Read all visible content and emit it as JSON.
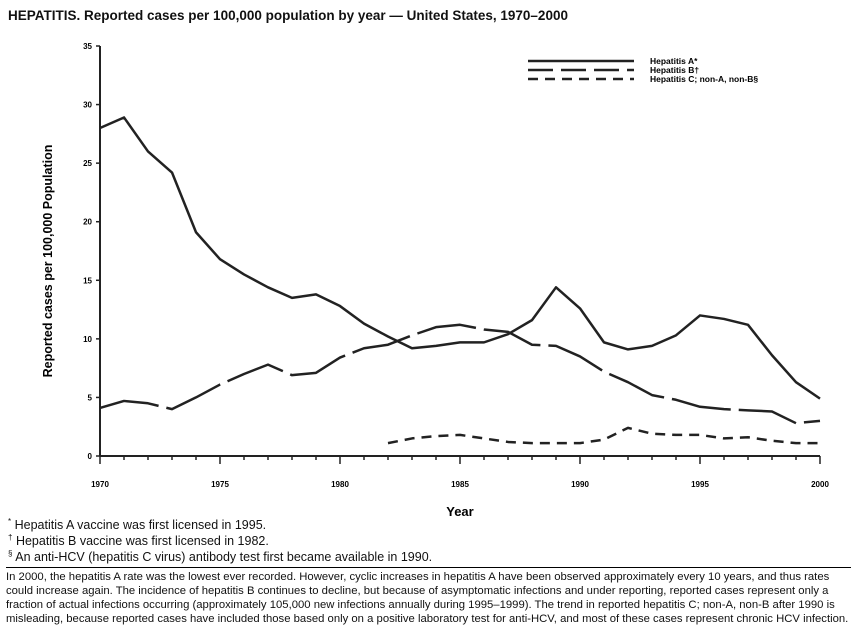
{
  "title": "HEPATITIS. Reported cases per 100,000 population by year — United States, 1970–2000",
  "chart_data": {
    "type": "line",
    "xlabel": "Year",
    "ylabel": "Reported cases per 100,000 Population",
    "xlim": [
      1970,
      2000
    ],
    "ylim": [
      0,
      35
    ],
    "x_ticks": [
      "1970",
      "1975",
      "1980",
      "1985",
      "1990",
      "1995",
      "2000"
    ],
    "y_ticks": [
      "0",
      "5",
      "10",
      "15",
      "20",
      "25",
      "30",
      "35"
    ],
    "grid": false,
    "legend_position": "top-right",
    "series": [
      {
        "name": "Hepatitis A*",
        "style": "solid",
        "x": [
          1970,
          1971,
          1972,
          1973,
          1974,
          1975,
          1976,
          1977,
          1978,
          1979,
          1980,
          1981,
          1982,
          1983,
          1984,
          1985,
          1986,
          1987,
          1988,
          1989,
          1990,
          1991,
          1992,
          1993,
          1994,
          1995,
          1996,
          1997,
          1998,
          1999,
          2000
        ],
        "values": [
          28.0,
          28.9,
          26.0,
          24.2,
          19.1,
          16.8,
          15.5,
          14.4,
          13.5,
          13.8,
          12.8,
          11.3,
          10.2,
          9.2,
          9.4,
          9.7,
          9.7,
          10.4,
          11.6,
          14.4,
          12.6,
          9.7,
          9.1,
          9.4,
          10.3,
          12.0,
          11.7,
          11.2,
          8.6,
          6.3,
          4.9
        ]
      },
      {
        "name": "Hepatitis B†",
        "style": "long-dash",
        "x": [
          1970,
          1971,
          1972,
          1973,
          1974,
          1975,
          1976,
          1977,
          1978,
          1979,
          1980,
          1981,
          1982,
          1983,
          1984,
          1985,
          1986,
          1987,
          1988,
          1989,
          1990,
          1991,
          1992,
          1993,
          1994,
          1995,
          1996,
          1997,
          1998,
          1999,
          2000
        ],
        "values": [
          4.1,
          4.7,
          4.5,
          4.0,
          5.0,
          6.1,
          7.0,
          7.8,
          6.9,
          7.1,
          8.4,
          9.2,
          9.5,
          10.3,
          11.0,
          11.2,
          10.8,
          10.6,
          9.5,
          9.4,
          8.5,
          7.2,
          6.3,
          5.2,
          4.8,
          4.2,
          4.0,
          3.9,
          3.8,
          2.8,
          3.0
        ]
      },
      {
        "name": "Hepatitis C; non-A, non-B§",
        "style": "short-dash",
        "x": [
          1982,
          1983,
          1984,
          1985,
          1986,
          1987,
          1988,
          1989,
          1990,
          1991,
          1992,
          1993,
          1994,
          1995,
          1996,
          1997,
          1998,
          1999,
          2000
        ],
        "values": [
          1.1,
          1.5,
          1.7,
          1.8,
          1.5,
          1.2,
          1.1,
          1.1,
          1.1,
          1.4,
          2.4,
          1.9,
          1.8,
          1.8,
          1.5,
          1.6,
          1.3,
          1.1,
          1.1
        ]
      }
    ]
  },
  "footnotes": [
    {
      "mark": "*",
      "text": "Hepatitis A vaccine was first licensed in 1995."
    },
    {
      "mark": "†",
      "text": "Hepatitis B vaccine was first licensed in 1982."
    },
    {
      "mark": "§",
      "text": "An anti-HCV (hepatitis C virus) antibody test first became available in 1990."
    }
  ],
  "note": "In 2000, the hepatitis A rate was the lowest ever recorded. However, cyclic increases in hepatitis A have been observed approximately every 10 years, and thus rates could increase again. The incidence of hepatitis B continues to decline, but because of asymptomatic infections and under reporting, reported cases represent only a fraction of actual infections occurring (approximately 105,000 new infections annually during 1995–1999). The trend in reported hepatitis C; non-A, non-B after 1990 is misleading, because reported cases have included those based only on a positive laboratory test for anti-HCV, and most of these cases represent chronic HCV infection."
}
